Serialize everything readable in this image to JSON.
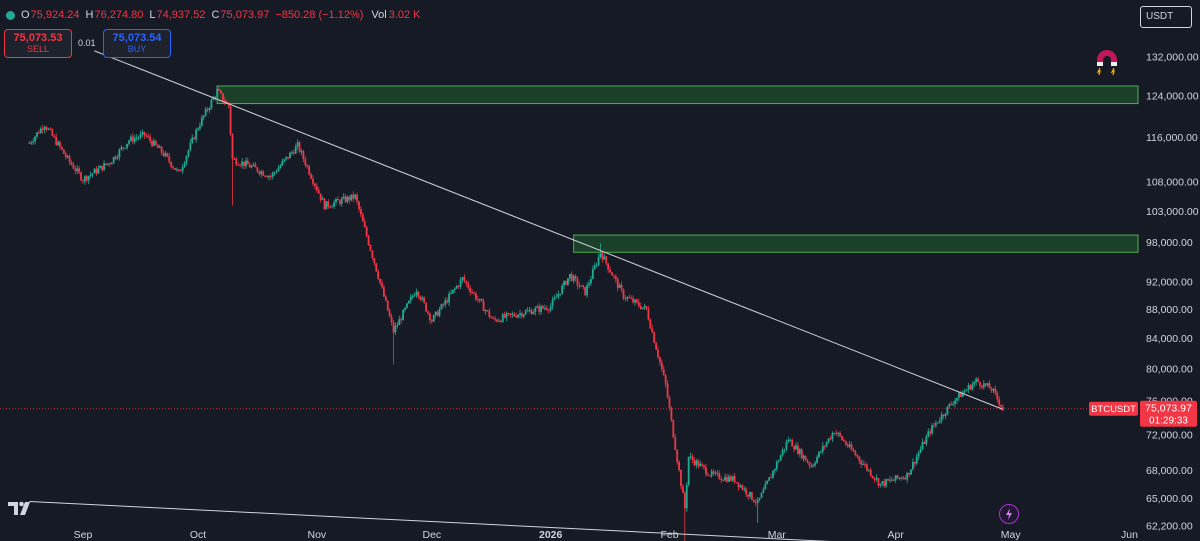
{
  "header": {
    "open_label": "O",
    "open": "75,924.24",
    "high_label": "H",
    "high": "76,274.80",
    "low_label": "L",
    "low": "74,937.52",
    "close_label": "C",
    "close": "75,073.97",
    "change": "−850.28 (−1.12%)",
    "vol_label": "Vol",
    "vol": "3.02 K"
  },
  "trade": {
    "sell_price": "75,073.53",
    "sell_label": "SELL",
    "spread": "0.01",
    "buy_price": "75,073.54",
    "buy_label": "BUY"
  },
  "currency": "USDT",
  "colors": {
    "up": "#22ab94",
    "down": "#f23645",
    "zone_fill": "#1e4d2b",
    "zone_stroke": "#4caf50",
    "trend": "#d1d4dc",
    "bg": "#161a25"
  },
  "icons": [
    "tradingview-logo-icon",
    "magnet-icon",
    "lightning-icon"
  ],
  "price_marker": {
    "symbol": "BTCUSDT",
    "price": "75,073.97",
    "countdown": "01:29:33"
  },
  "chart_data": {
    "type": "candlestick",
    "symbol": "BTCUSDT",
    "y_scale": "log",
    "ylim": [
      59500,
      137000
    ],
    "y_ticks": [
      {
        "value": 132000,
        "label": "132,000.00"
      },
      {
        "value": 124000,
        "label": "124,000.00"
      },
      {
        "value": 116000,
        "label": "116,000.00"
      },
      {
        "value": 108000,
        "label": "108,000.00"
      },
      {
        "value": 103000,
        "label": "103,000.00"
      },
      {
        "value": 98000,
        "label": "98,000.00"
      },
      {
        "value": 92000,
        "label": "92,000.00"
      },
      {
        "value": 88000,
        "label": "88,000.00"
      },
      {
        "value": 84000,
        "label": "84,000.00"
      },
      {
        "value": 80000,
        "label": "80,000.00"
      },
      {
        "value": 76000,
        "label": "76,000.00"
      },
      {
        "value": 72000,
        "label": "72,000.00"
      },
      {
        "value": 68000,
        "label": "68,000.00"
      },
      {
        "value": 65000,
        "label": "65,000.00"
      },
      {
        "value": 62200,
        "label": "62,200.00"
      }
    ],
    "x_ticks": [
      "Sep",
      "Oct",
      "Nov",
      "Dec",
      "2026",
      "Feb",
      "Mar",
      "Apr",
      "May",
      "Jun"
    ],
    "x_tick_bold": "2026",
    "price_path": [
      {
        "date": "Aug 18",
        "price": 115000
      },
      {
        "date": "Aug 22",
        "price": 118500
      },
      {
        "date": "Aug 28",
        "price": 112000
      },
      {
        "date": "Sep 1",
        "price": 108500
      },
      {
        "date": "Sep 8",
        "price": 111500
      },
      {
        "date": "Sep 13",
        "price": 115500
      },
      {
        "date": "Sep 17",
        "price": 116500
      },
      {
        "date": "Sep 22",
        "price": 113000
      },
      {
        "date": "Sep 26",
        "price": 109500
      },
      {
        "date": "Oct 1",
        "price": 118000
      },
      {
        "date": "Oct 6",
        "price": 125000
      },
      {
        "date": "Oct 9",
        "price": 122000
      },
      {
        "date": "Oct 10",
        "price": 112000
      },
      {
        "date": "Oct 14",
        "price": 111000
      },
      {
        "date": "Oct 20",
        "price": 109000
      },
      {
        "date": "Oct 27",
        "price": 114500
      },
      {
        "date": "Nov 3",
        "price": 104000
      },
      {
        "date": "Nov 11",
        "price": 105500
      },
      {
        "date": "Nov 16",
        "price": 95000
      },
      {
        "date": "Nov 21",
        "price": 85000
      },
      {
        "date": "Nov 27",
        "price": 91000
      },
      {
        "date": "Dec 1",
        "price": 86500
      },
      {
        "date": "Dec 9",
        "price": 92500
      },
      {
        "date": "Dec 17",
        "price": 86500
      },
      {
        "date": "Dec 24",
        "price": 87500
      },
      {
        "date": "Jan 1",
        "price": 88500
      },
      {
        "date": "Jan 6",
        "price": 93000
      },
      {
        "date": "Jan 10",
        "price": 90500
      },
      {
        "date": "Jan 14",
        "price": 96500
      },
      {
        "date": "Jan 20",
        "price": 90000
      },
      {
        "date": "Jan 26",
        "price": 88000
      },
      {
        "date": "Jan 31",
        "price": 78000
      },
      {
        "date": "Feb 5",
        "price": 64000
      },
      {
        "date": "Feb 6",
        "price": 69500
      },
      {
        "date": "Feb 12",
        "price": 67500
      },
      {
        "date": "Feb 18",
        "price": 67000
      },
      {
        "date": "Feb 24",
        "price": 64500
      },
      {
        "date": "Mar 4",
        "price": 71500
      },
      {
        "date": "Mar 10",
        "price": 68500
      },
      {
        "date": "Mar 16",
        "price": 72500
      },
      {
        "date": "Mar 22",
        "price": 69500
      },
      {
        "date": "Mar 28",
        "price": 66500
      },
      {
        "date": "Apr 4",
        "price": 67500
      },
      {
        "date": "Apr 10",
        "price": 72500
      },
      {
        "date": "Apr 16",
        "price": 76000
      },
      {
        "date": "Apr 22",
        "price": 78500
      },
      {
        "date": "Apr 26",
        "price": 77500
      },
      {
        "date": "Apr 29",
        "price": 75074
      }
    ],
    "wick_extremes": [
      {
        "date": "Oct 6",
        "high": 126200
      },
      {
        "date": "Oct 10",
        "low": 104000
      },
      {
        "date": "Nov 21",
        "low": 80600
      },
      {
        "date": "Jan 14",
        "high": 97900
      },
      {
        "date": "Feb 5",
        "low": 60000
      },
      {
        "date": "Feb 24",
        "low": 62500
      }
    ],
    "zones": [
      {
        "x_start": "Oct 6",
        "x_end": "right edge",
        "y_low": 122500,
        "y_high": 126000
      },
      {
        "x_start": "Jan 7",
        "x_end": "right edge",
        "y_low": 96500,
        "y_high": 99200
      }
    ],
    "trendlines": [
      {
        "from": {
          "date": "Sep 4",
          "price": 133300
        },
        "to": {
          "date": "Apr 29",
          "price": 75000
        }
      },
      {
        "from": {
          "date": "Aug 18",
          "price": 64700
        },
        "to": {
          "date": "May 1",
          "price": 59800
        }
      }
    ],
    "last_price": 75073.97
  }
}
